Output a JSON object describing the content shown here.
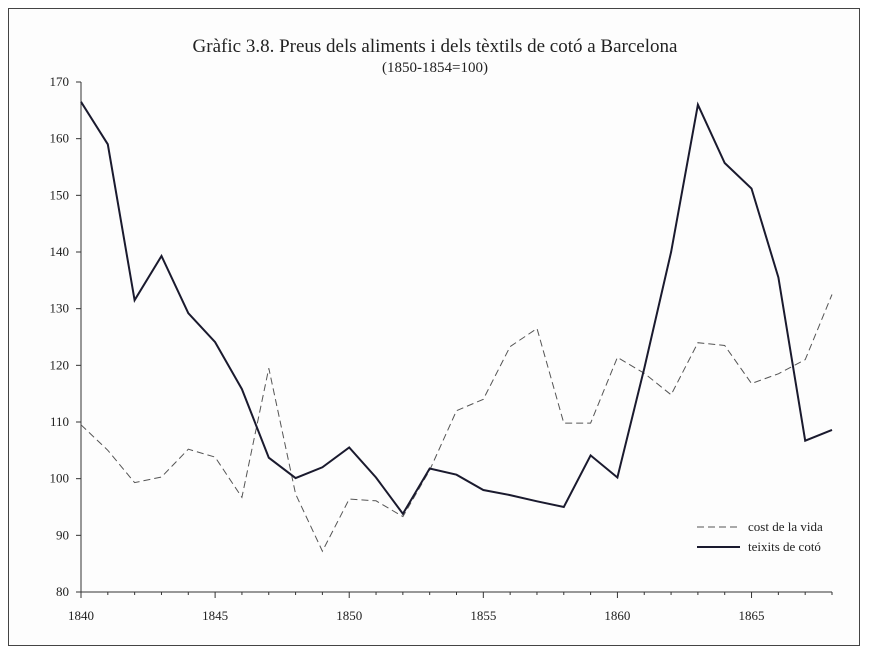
{
  "chart_data": {
    "type": "line",
    "title": "Gràfic 3.8. Preus dels aliments i dels tèxtils de cotó a Barcelona",
    "subtitle": "(1850-1854=100)",
    "xlabel": "",
    "ylabel": "",
    "xlim": [
      1840,
      1868
    ],
    "ylim": [
      80,
      170
    ],
    "x_ticks": [
      1840,
      1845,
      1850,
      1855,
      1860,
      1865
    ],
    "y_ticks": [
      80,
      90,
      100,
      110,
      120,
      130,
      140,
      150,
      160,
      170
    ],
    "grid": false,
    "legend_position": "bottom-right",
    "x": [
      1840,
      1841,
      1842,
      1843,
      1844,
      1845,
      1846,
      1847,
      1848,
      1849,
      1850,
      1851,
      1852,
      1853,
      1854,
      1855,
      1856,
      1857,
      1858,
      1859,
      1860,
      1861,
      1862,
      1863,
      1864,
      1865,
      1866,
      1867,
      1868
    ],
    "series": [
      {
        "name": "cost de la vida",
        "style": "dashed",
        "color": "#555555",
        "values": [
          109.5,
          105,
          99.3,
          100.3,
          105.2,
          103.8,
          96.7,
          119.5,
          97.3,
          87.2,
          96.4,
          96.1,
          93.3,
          101.5,
          112,
          114,
          123.3,
          126.5,
          109.8,
          109.8,
          121.4,
          118.6,
          114.8,
          124,
          123.5,
          116.8,
          118.5,
          121,
          132.5
        ]
      },
      {
        "name": "teixits de cotó",
        "style": "solid",
        "color": "#1a1a2e",
        "values": [
          166.5,
          159,
          131.5,
          139.3,
          129.2,
          124.1,
          115.8,
          103.7,
          100.1,
          102,
          105.5,
          100.2,
          93.8,
          101.8,
          100.7,
          98,
          97.1,
          96,
          95,
          104.1,
          100.2,
          119.5,
          140,
          166,
          155.7,
          151.2,
          135.5,
          106.7,
          108.6
        ]
      }
    ]
  }
}
